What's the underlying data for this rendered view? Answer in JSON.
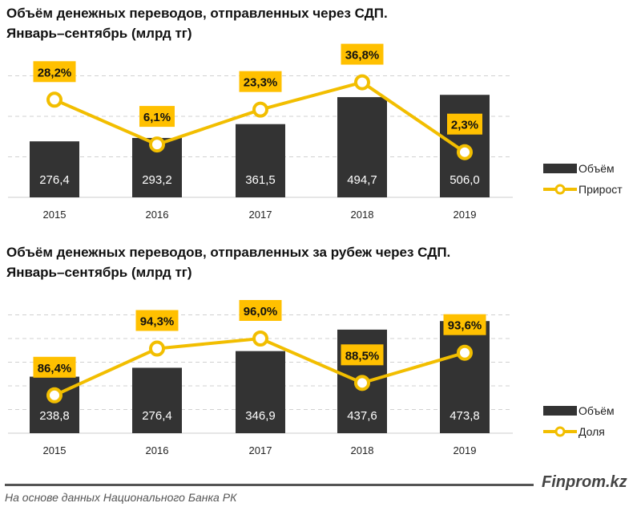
{
  "colors": {
    "bar": "#333333",
    "line": "#F2BE00",
    "label_bg": "#FFC000",
    "grid": "#d0d0d0"
  },
  "chart_data": [
    {
      "type": "bar+line",
      "title_line1": "Объём денежных переводов, отправленных через СДП.",
      "title_line2": "Январь–сентябрь (млрд тг)",
      "categories": [
        "2015",
        "2016",
        "2017",
        "2018",
        "2019"
      ],
      "series": [
        {
          "name": "Объём",
          "type": "bar",
          "values": [
            276.4,
            293.2,
            361.5,
            494.7,
            506.0
          ],
          "labels": [
            "276,4",
            "293,2",
            "361,5",
            "494,7",
            "506,0"
          ],
          "ylim": [
            0,
            800
          ]
        },
        {
          "name": "Прирост",
          "type": "line",
          "values": [
            28.2,
            6.1,
            23.3,
            36.8,
            2.3
          ],
          "labels": [
            "28,2%",
            "6,1%",
            "23,3%",
            "36,8%",
            "2,3%"
          ],
          "ylim": [
            -20,
            60
          ]
        }
      ],
      "grid": true,
      "gridlines": [
        200,
        400,
        600
      ],
      "legend": "right"
    },
    {
      "type": "bar+line",
      "title_line1": "Объём денежных переводов, отправленных за рубеж через СДП.",
      "title_line2": "Январь–сентябрь (млрд тг)",
      "categories": [
        "2015",
        "2016",
        "2017",
        "2018",
        "2019"
      ],
      "series": [
        {
          "name": "Объём",
          "type": "bar",
          "values": [
            238.8,
            276.4,
            346.9,
            437.6,
            473.8
          ],
          "labels": [
            "238,8",
            "276,4",
            "346,9",
            "437,6",
            "473,8"
          ],
          "ylim": [
            0,
            600
          ]
        },
        {
          "name": "Доля",
          "type": "line",
          "values": [
            86.4,
            94.3,
            96.0,
            88.5,
            93.6
          ],
          "labels": [
            "86,4%",
            "94,3%",
            "96,0%",
            "88,5%",
            "93,6%"
          ],
          "ylim": [
            80,
            104
          ]
        }
      ],
      "grid": true,
      "gridlines": [
        100,
        200,
        300,
        400,
        500
      ],
      "legend": "right"
    }
  ],
  "footer": {
    "brand": "Finprom.kz",
    "source": "На основе данных Национального Банка РК"
  }
}
